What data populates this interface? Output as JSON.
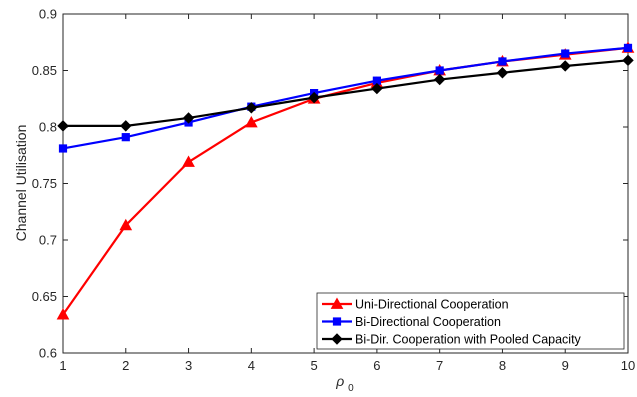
{
  "chart_data": {
    "type": "line",
    "title": "",
    "xlabel_symbol": "ρ",
    "xlabel_subscript": "0",
    "ylabel": "Channel Utilisation",
    "x": [
      1,
      2,
      3,
      4,
      5,
      6,
      7,
      8,
      9,
      10
    ],
    "xlim": [
      1,
      10
    ],
    "ylim": [
      0.6,
      0.9
    ],
    "xticks": [
      "1",
      "2",
      "3",
      "4",
      "5",
      "6",
      "7",
      "8",
      "9",
      "10"
    ],
    "yticks": [
      "0.6",
      "0.65",
      "0.7",
      "0.75",
      "0.8",
      "0.85",
      "0.9"
    ],
    "grid": false,
    "legend_position": "bottom-right",
    "series": [
      {
        "name": "Uni-Directional Cooperation",
        "color": "#ff0000",
        "marker": "triangle",
        "values": [
          0.634,
          0.713,
          0.769,
          0.804,
          0.825,
          0.839,
          0.85,
          0.858,
          0.864,
          0.87
        ]
      },
      {
        "name": "Bi-Directional Cooperation",
        "color": "#0000ff",
        "marker": "square",
        "values": [
          0.781,
          0.791,
          0.804,
          0.818,
          0.83,
          0.841,
          0.85,
          0.858,
          0.865,
          0.87
        ]
      },
      {
        "name": "Bi-Dir. Cooperation with Pooled Capacity",
        "color": "#000000",
        "marker": "diamond",
        "values": [
          0.801,
          0.801,
          0.808,
          0.817,
          0.826,
          0.834,
          0.842,
          0.848,
          0.854,
          0.859
        ]
      }
    ]
  }
}
